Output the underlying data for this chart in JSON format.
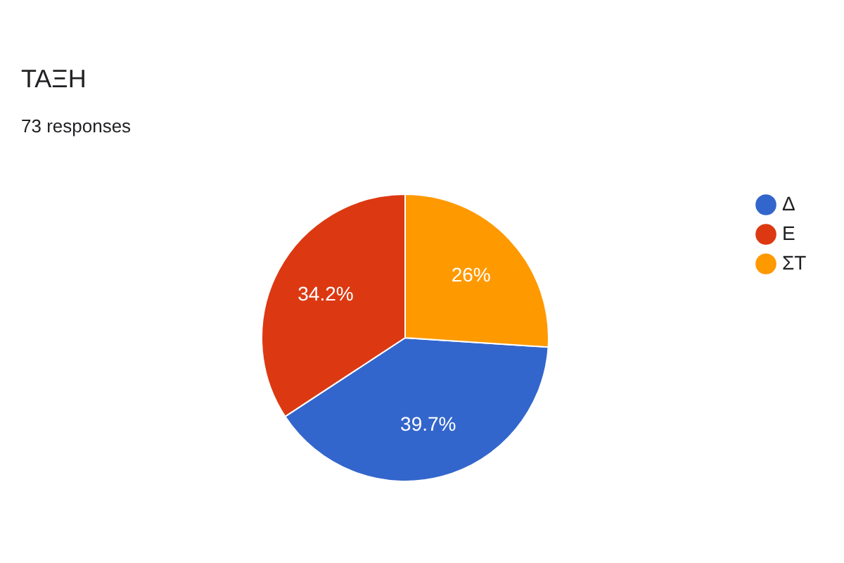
{
  "chart_data": {
    "type": "pie",
    "title": "ΤΑΞΗ",
    "subtitle": "73 responses",
    "categories": [
      "Δ",
      "Ε",
      "ΣΤ"
    ],
    "values": [
      39.7,
      34.2,
      26
    ],
    "colors": [
      "#3366cc",
      "#dc3912",
      "#ff9900"
    ],
    "value_labels": [
      "39.7%",
      "34.2%",
      "26%"
    ],
    "legend": "right"
  }
}
